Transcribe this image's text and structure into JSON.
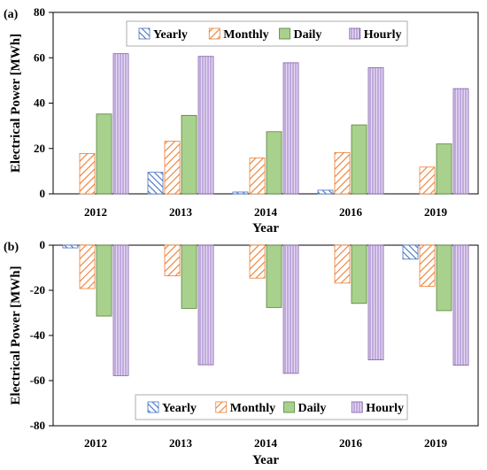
{
  "figure": {
    "colors": {
      "Yearly": "#4472C4",
      "Monthly": "#ED7D31",
      "Daily": "#A9D18E",
      "Hourly": "#CDB4E6"
    },
    "edge_colors": {
      "Yearly": "#4472C4",
      "Monthly": "#ED7D31",
      "Daily": "#548235",
      "Hourly": "#7F5FA8"
    }
  },
  "chart_data": [
    {
      "type": "bar",
      "panel_label": "(a)",
      "title": "",
      "xlabel": "Year",
      "ylabel": "Electrical Power [MWh]",
      "categories": [
        "2012",
        "2013",
        "2014",
        "2016",
        "2019"
      ],
      "ylim": [
        0,
        80
      ],
      "yticks": [
        0,
        20,
        40,
        60,
        80
      ],
      "legend_position": "top",
      "series": [
        {
          "name": "Yearly",
          "values": [
            0,
            9.5,
            0.8,
            1.6,
            0
          ]
        },
        {
          "name": "Monthly",
          "values": [
            17.8,
            23.2,
            15.8,
            18.2,
            11.8
          ]
        },
        {
          "name": "Daily",
          "values": [
            35.2,
            34.6,
            27.4,
            30.4,
            22.0
          ]
        },
        {
          "name": "Hourly",
          "values": [
            61.8,
            60.6,
            57.8,
            55.6,
            46.4
          ]
        }
      ]
    },
    {
      "type": "bar",
      "panel_label": "(b)",
      "title": "",
      "xlabel": "Year",
      "ylabel": "Electrical Power [MWh]",
      "categories": [
        "2012",
        "2013",
        "2014",
        "2016",
        "2019"
      ],
      "ylim": [
        -80,
        0
      ],
      "yticks": [
        0,
        -20,
        -40,
        -60,
        -80
      ],
      "legend_position": "bottom",
      "series": [
        {
          "name": "Yearly",
          "values": [
            -1.2,
            0,
            0,
            0,
            -6.2
          ]
        },
        {
          "name": "Monthly",
          "values": [
            -19.2,
            -13.6,
            -14.6,
            -16.8,
            -18.2
          ]
        },
        {
          "name": "Daily",
          "values": [
            -31.4,
            -28.0,
            -27.6,
            -25.8,
            -29.0
          ]
        },
        {
          "name": "Hourly",
          "values": [
            -57.8,
            -53.0,
            -56.8,
            -50.8,
            -53.2
          ]
        }
      ]
    }
  ]
}
